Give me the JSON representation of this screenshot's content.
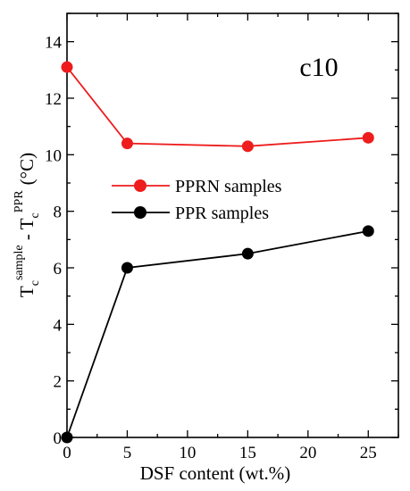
{
  "chart_data": {
    "type": "line",
    "panel_label": "c10",
    "xlabel": "DSF content (wt.%)",
    "ylabel": {
      "t1": "T",
      "sub1": "c",
      "sup1": "sample",
      "dash": " - ",
      "t2": "T",
      "sub2": "c",
      "sup2": "PPR",
      "unit": "(°C)"
    },
    "xlim": [
      0,
      27.5
    ],
    "ylim": [
      0,
      15
    ],
    "xticks": [
      0,
      5,
      10,
      15,
      20,
      25
    ],
    "yticks": [
      0,
      2,
      4,
      6,
      8,
      10,
      12,
      14
    ],
    "legend_position": "center-left",
    "grid": false,
    "series": [
      {
        "name": "PPRN samples",
        "color": "#ee1c1c",
        "x": [
          0,
          5,
          15,
          25
        ],
        "y": [
          13.1,
          10.4,
          10.3,
          10.6
        ]
      },
      {
        "name": "PPR samples",
        "color": "#000000",
        "x": [
          0,
          5,
          15,
          25
        ],
        "y": [
          0.0,
          6.0,
          6.5,
          7.3
        ]
      }
    ]
  }
}
